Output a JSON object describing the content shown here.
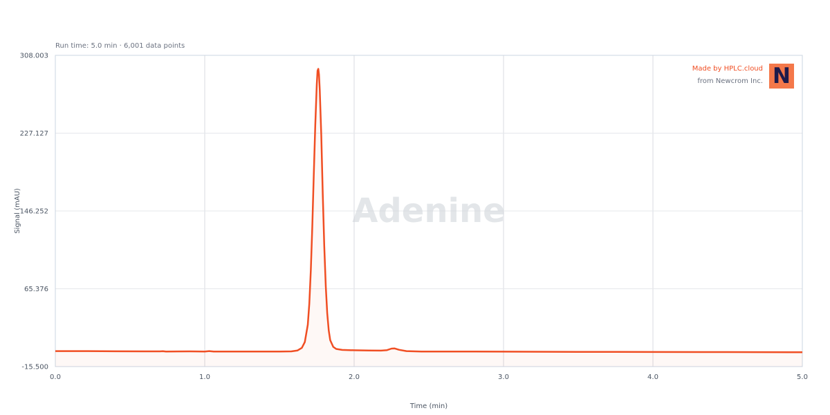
{
  "subtitle": "Run time: 5.0 min · 6,001 data points",
  "watermark": "Adenine",
  "branding": {
    "made_by": "Made by HPLC.cloud",
    "from": "from Newcrom Inc.",
    "logo_letter": "N"
  },
  "colors": {
    "trace": "#f04e23",
    "fill": "#f04e23",
    "grid": "#e5e7eb",
    "axis": "#cbd5e1",
    "logo_bg": "#f4784a",
    "logo_fg": "#1e1b4b"
  },
  "chart_data": {
    "type": "line",
    "title": "",
    "xlabel": "Time (min)",
    "ylabel": "Signal (mAU)",
    "xlim": [
      0.0,
      5.0
    ],
    "ylim": [
      -15.5,
      308.003
    ],
    "x_ticks": [
      "0.0",
      "1.0",
      "2.0",
      "3.0",
      "4.0",
      "5.0"
    ],
    "y_ticks": [
      "308.003",
      "227.127",
      "146.252",
      "65.376",
      "-15.500"
    ],
    "grid": true,
    "series": [
      {
        "points": [
          [
            0.0,
            0.6
          ],
          [
            0.2,
            0.6
          ],
          [
            0.4,
            0.4
          ],
          [
            0.6,
            0.3
          ],
          [
            0.7,
            0.3
          ],
          [
            0.72,
            0.5
          ],
          [
            0.74,
            0.2
          ],
          [
            0.9,
            0.3
          ],
          [
            1.0,
            0.2
          ],
          [
            1.03,
            0.6
          ],
          [
            1.06,
            0.2
          ],
          [
            1.2,
            0.2
          ],
          [
            1.4,
            0.2
          ],
          [
            1.5,
            0.2
          ],
          [
            1.58,
            0.3
          ],
          [
            1.62,
            1.2
          ],
          [
            1.65,
            4.0
          ],
          [
            1.67,
            10.0
          ],
          [
            1.69,
            28.0
          ],
          [
            1.7,
            50.0
          ],
          [
            1.71,
            85.0
          ],
          [
            1.72,
            130.0
          ],
          [
            1.73,
            185.0
          ],
          [
            1.74,
            235.0
          ],
          [
            1.75,
            278.0
          ],
          [
            1.755,
            292.0
          ],
          [
            1.76,
            294.0
          ],
          [
            1.765,
            288.0
          ],
          [
            1.77,
            272.0
          ],
          [
            1.78,
            225.0
          ],
          [
            1.79,
            165.0
          ],
          [
            1.8,
            110.0
          ],
          [
            1.81,
            68.0
          ],
          [
            1.82,
            40.0
          ],
          [
            1.83,
            22.0
          ],
          [
            1.84,
            12.0
          ],
          [
            1.86,
            5.0
          ],
          [
            1.88,
            2.8
          ],
          [
            1.92,
            1.8
          ],
          [
            2.0,
            1.5
          ],
          [
            2.1,
            1.2
          ],
          [
            2.18,
            1.1
          ],
          [
            2.22,
            1.6
          ],
          [
            2.25,
            3.2
          ],
          [
            2.27,
            3.4
          ],
          [
            2.3,
            2.0
          ],
          [
            2.35,
            0.6
          ],
          [
            2.45,
            0.2
          ],
          [
            2.6,
            0.2
          ],
          [
            2.8,
            0.2
          ],
          [
            3.0,
            0.0
          ],
          [
            3.5,
            -0.2
          ],
          [
            4.0,
            -0.3
          ],
          [
            4.5,
            -0.4
          ],
          [
            5.0,
            -0.6
          ]
        ]
      }
    ]
  }
}
